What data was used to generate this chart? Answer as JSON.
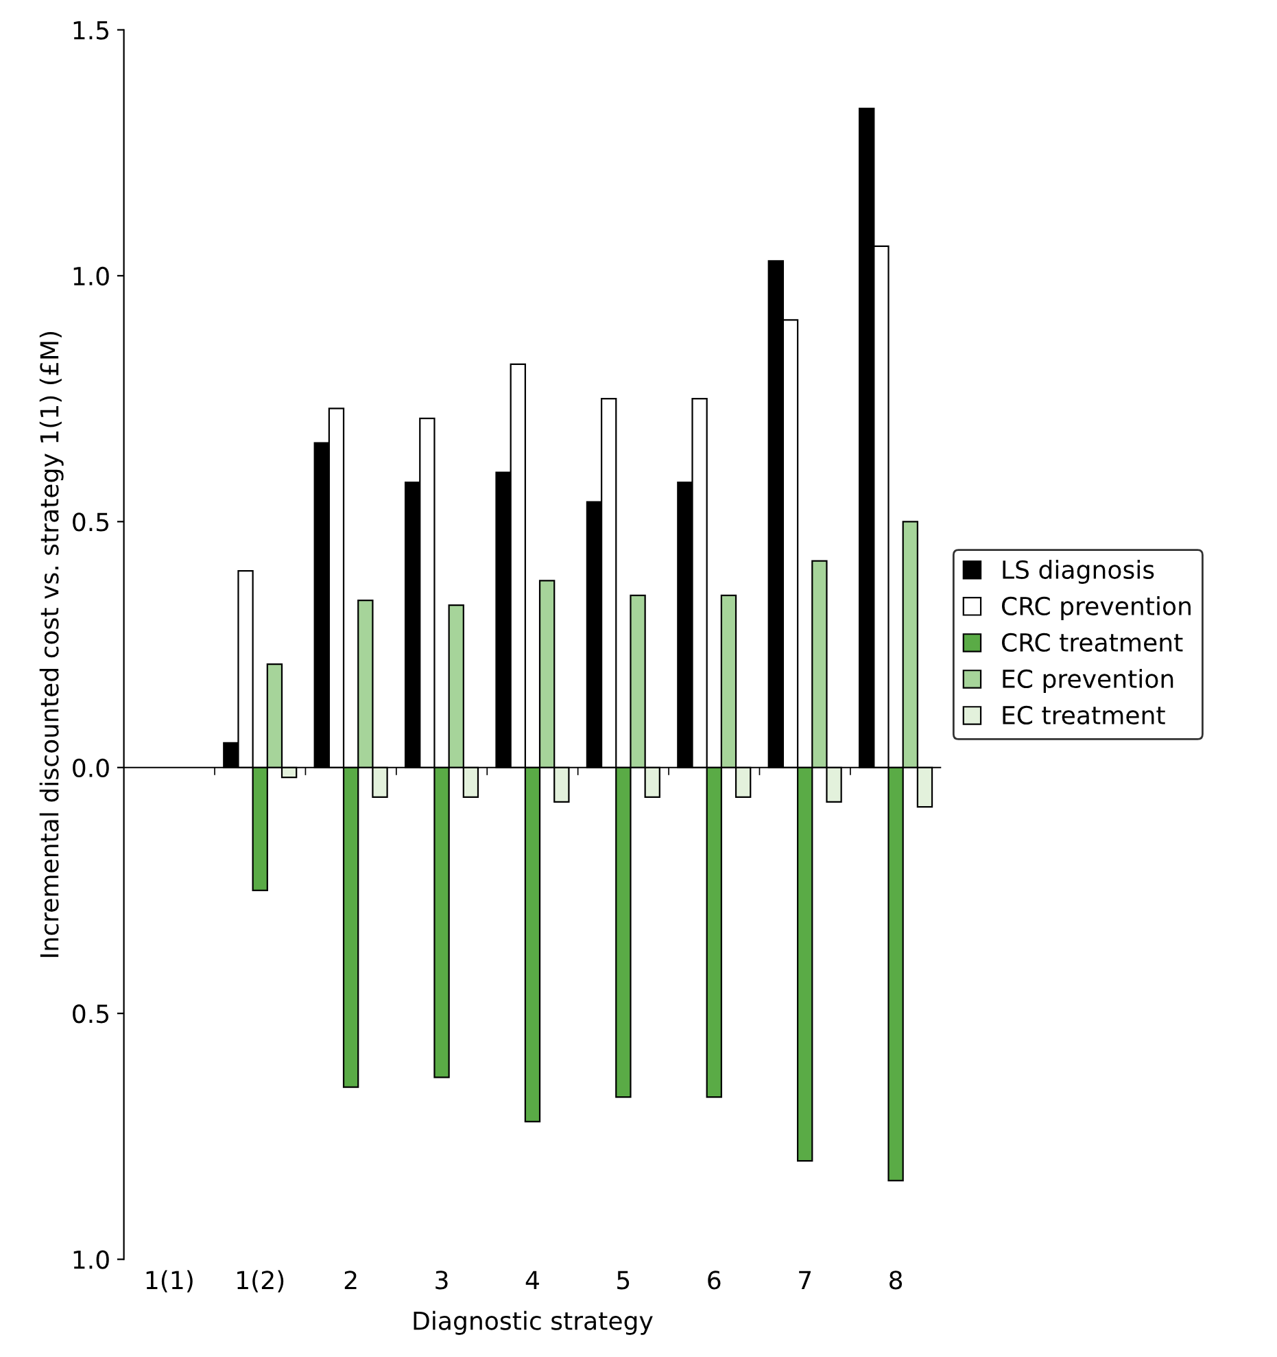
{
  "chart_data": {
    "type": "bar",
    "xlabel": "Diagnostic strategy",
    "ylabel": "Incremental discounted cost vs. strategy 1(1) (£M)",
    "categories": [
      "1(1)",
      "1(2)",
      "2",
      "3",
      "4",
      "5",
      "6",
      "7",
      "8"
    ],
    "series": [
      {
        "name": "LS diagnosis",
        "color": "#000000",
        "values": [
          null,
          0.05,
          0.66,
          0.58,
          0.6,
          0.54,
          0.58,
          1.03,
          1.34
        ]
      },
      {
        "name": "CRC prevention",
        "color": "#ffffff",
        "values": [
          null,
          0.4,
          0.73,
          0.71,
          0.82,
          0.75,
          0.75,
          0.91,
          1.06
        ]
      },
      {
        "name": "CRC treatment",
        "color": "#5aab46",
        "values": [
          null,
          -0.25,
          -0.65,
          -0.63,
          -0.72,
          -0.67,
          -0.67,
          -0.8,
          -0.84
        ]
      },
      {
        "name": "EC prevention",
        "color": "#a6d49a",
        "values": [
          null,
          0.21,
          0.34,
          0.33,
          0.38,
          0.35,
          0.35,
          0.42,
          0.5
        ]
      },
      {
        "name": "EC treatment",
        "color": "#e3f1dc",
        "values": [
          null,
          -0.02,
          -0.06,
          -0.06,
          -0.07,
          -0.06,
          -0.06,
          -0.07,
          -0.08
        ]
      }
    ],
    "ylim": [
      -1.0,
      1.5
    ],
    "yticks": [
      {
        "value": -1.0,
        "label": "1.0"
      },
      {
        "value": -0.5,
        "label": "0.5"
      },
      {
        "value": 0,
        "label": "0.0"
      },
      0.5,
      {
        "value": 1.0,
        "label": "1.0"
      },
      1.5
    ],
    "ref_lines": [
      {
        "axis": "y",
        "value": 0,
        "color": "#000000"
      }
    ],
    "legend": "right",
    "grid": false
  }
}
